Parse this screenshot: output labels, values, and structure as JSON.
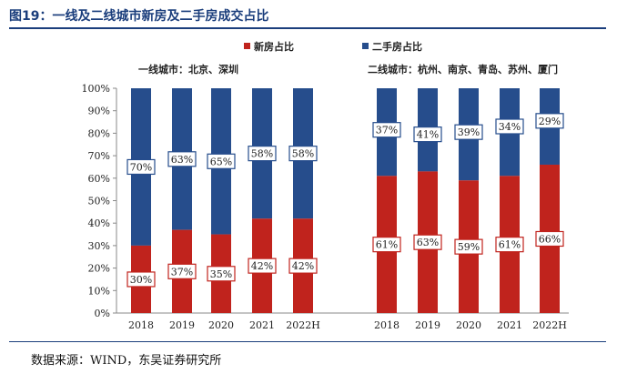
{
  "figure_title": "图19：一线及二线城市新房及二手房成交占比",
  "source": "数据来源：WIND，东吴证券研究所",
  "chart_data": [
    {
      "type": "bar",
      "stacked": true,
      "subtitle": "一线城市：北京、深圳",
      "categories": [
        "2018",
        "2019",
        "2020",
        "2021",
        "2022H"
      ],
      "series": [
        {
          "name": "新房占比",
          "color": "#c0231d",
          "values": [
            30,
            37,
            35,
            42,
            42
          ]
        },
        {
          "name": "二手房占比",
          "color": "#264d8c",
          "values": [
            70,
            63,
            65,
            58,
            58
          ]
        }
      ],
      "ylim": [
        0,
        100
      ],
      "yticks": [
        "0%",
        "10%",
        "20%",
        "30%",
        "40%",
        "50%",
        "60%",
        "70%",
        "80%",
        "90%",
        "100%"
      ],
      "legend": "top"
    },
    {
      "type": "bar",
      "stacked": true,
      "subtitle": "二线城市：杭州、南京、青岛、苏州、厦门",
      "categories": [
        "2018",
        "2019",
        "2020",
        "2021",
        "2022H"
      ],
      "series": [
        {
          "name": "新房占比",
          "color": "#c0231d",
          "values": [
            61,
            63,
            59,
            61,
            66
          ]
        },
        {
          "name": "二手房占比",
          "color": "#264d8c",
          "values": [
            37,
            41,
            39,
            34,
            29
          ]
        }
      ],
      "ylim": [
        0,
        100
      ],
      "legend": "top"
    }
  ]
}
